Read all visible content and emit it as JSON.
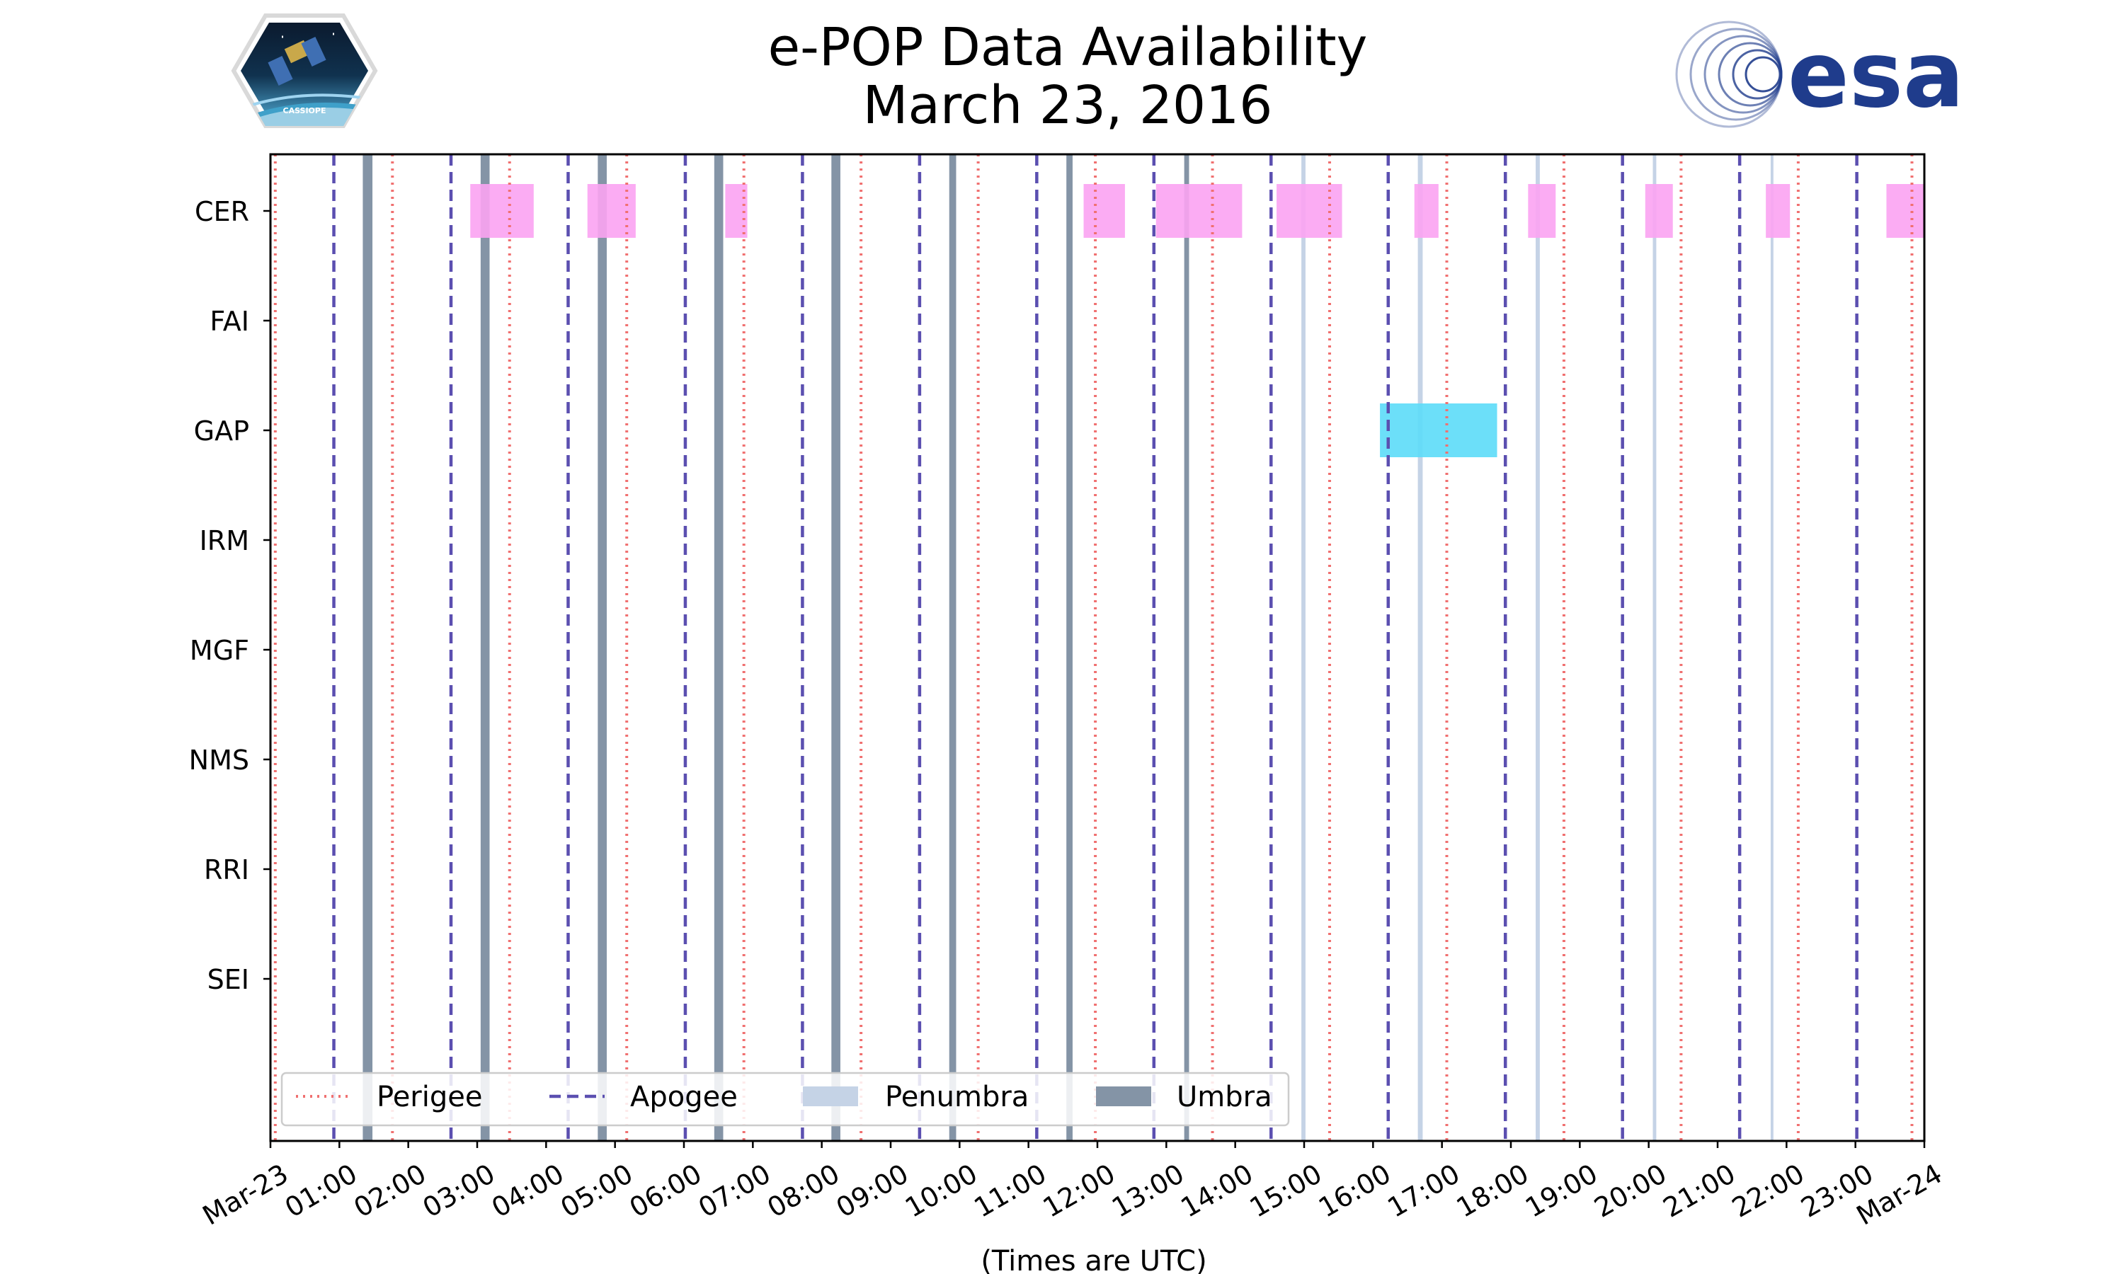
{
  "chart_data": {
    "type": "timeline",
    "title": [
      "e-POP Data Availability",
      "March 23, 2016"
    ],
    "xlabel": "(Times are UTC)",
    "ylabel": "",
    "xlim": [
      0,
      24
    ],
    "x_unit": "hours UTC",
    "x_ticks": [
      0,
      1,
      2,
      3,
      4,
      5,
      6,
      7,
      8,
      9,
      10,
      11,
      12,
      13,
      14,
      15,
      16,
      17,
      18,
      19,
      20,
      21,
      22,
      23,
      24
    ],
    "x_tick_labels": [
      "Mar-23",
      "01:00",
      "02:00",
      "03:00",
      "04:00",
      "05:00",
      "06:00",
      "07:00",
      "08:00",
      "09:00",
      "10:00",
      "11:00",
      "12:00",
      "13:00",
      "14:00",
      "15:00",
      "16:00",
      "17:00",
      "18:00",
      "19:00",
      "20:00",
      "21:00",
      "22:00",
      "23:00",
      "Mar-24"
    ],
    "instruments": [
      "CER",
      "FAI",
      "GAP",
      "IRM",
      "MGF",
      "NMS",
      "RRI",
      "SEI"
    ],
    "grid": false,
    "legend": {
      "placement": "lower-left",
      "entries": [
        {
          "label": "Perigee",
          "style": "dotted",
          "color": "#f07070"
        },
        {
          "label": "Apogee",
          "style": "dashed",
          "color": "#5b4fb0"
        },
        {
          "label": "Penumbra",
          "style": "patch",
          "color": "#c5d3e6"
        },
        {
          "label": "Umbra",
          "style": "patch",
          "color": "#8494a6"
        }
      ]
    },
    "perigee_times": [
      0.07,
      1.77,
      3.47,
      5.17,
      6.87,
      8.57,
      10.27,
      11.97,
      13.67,
      15.37,
      17.07,
      18.77,
      20.47,
      22.17,
      23.82
    ],
    "apogee_times": [
      0.92,
      2.62,
      4.32,
      6.02,
      7.72,
      9.42,
      11.12,
      12.82,
      14.52,
      16.22,
      17.92,
      19.62,
      21.32,
      23.02
    ],
    "umbra_intervals": [
      [
        1.34,
        1.48
      ],
      [
        3.05,
        3.18
      ],
      [
        4.75,
        4.88
      ],
      [
        6.44,
        6.57
      ],
      [
        8.14,
        8.27
      ],
      [
        9.85,
        9.95
      ],
      [
        11.55,
        11.64
      ],
      [
        13.26,
        13.33
      ]
    ],
    "penumbra_intervals": [
      [
        14.96,
        15.02
      ],
      [
        16.65,
        16.72
      ],
      [
        18.36,
        18.42
      ],
      [
        20.06,
        20.11
      ],
      [
        21.77,
        21.81
      ]
    ],
    "series": [
      {
        "name": "CER",
        "color": "#fba3f2",
        "intervals": [
          [
            2.9,
            3.82
          ],
          [
            4.6,
            5.3
          ],
          [
            6.6,
            6.92
          ],
          [
            11.8,
            12.4
          ],
          [
            12.85,
            14.1
          ],
          [
            14.6,
            15.55
          ],
          [
            16.6,
            16.95
          ],
          [
            18.25,
            18.65
          ],
          [
            19.95,
            20.35
          ],
          [
            21.7,
            22.05
          ],
          [
            23.45,
            24.0
          ]
        ]
      },
      {
        "name": "FAI",
        "color": "#fba3f2",
        "intervals": []
      },
      {
        "name": "GAP",
        "color": "#5cdcf8",
        "intervals": [
          [
            16.1,
            17.8
          ]
        ]
      },
      {
        "name": "IRM",
        "color": "#fba3f2",
        "intervals": []
      },
      {
        "name": "MGF",
        "color": "#fba3f2",
        "intervals": []
      },
      {
        "name": "NMS",
        "color": "#fba3f2",
        "intervals": []
      },
      {
        "name": "RRI",
        "color": "#fba3f2",
        "intervals": []
      },
      {
        "name": "SEI",
        "color": "#fba3f2",
        "intervals": []
      }
    ]
  },
  "logos": {
    "left": {
      "name": "CASSIOPE",
      "text": "CASSIOPE"
    },
    "right": {
      "name": "esa",
      "text": "esa",
      "color": "#1f3c8c"
    }
  }
}
